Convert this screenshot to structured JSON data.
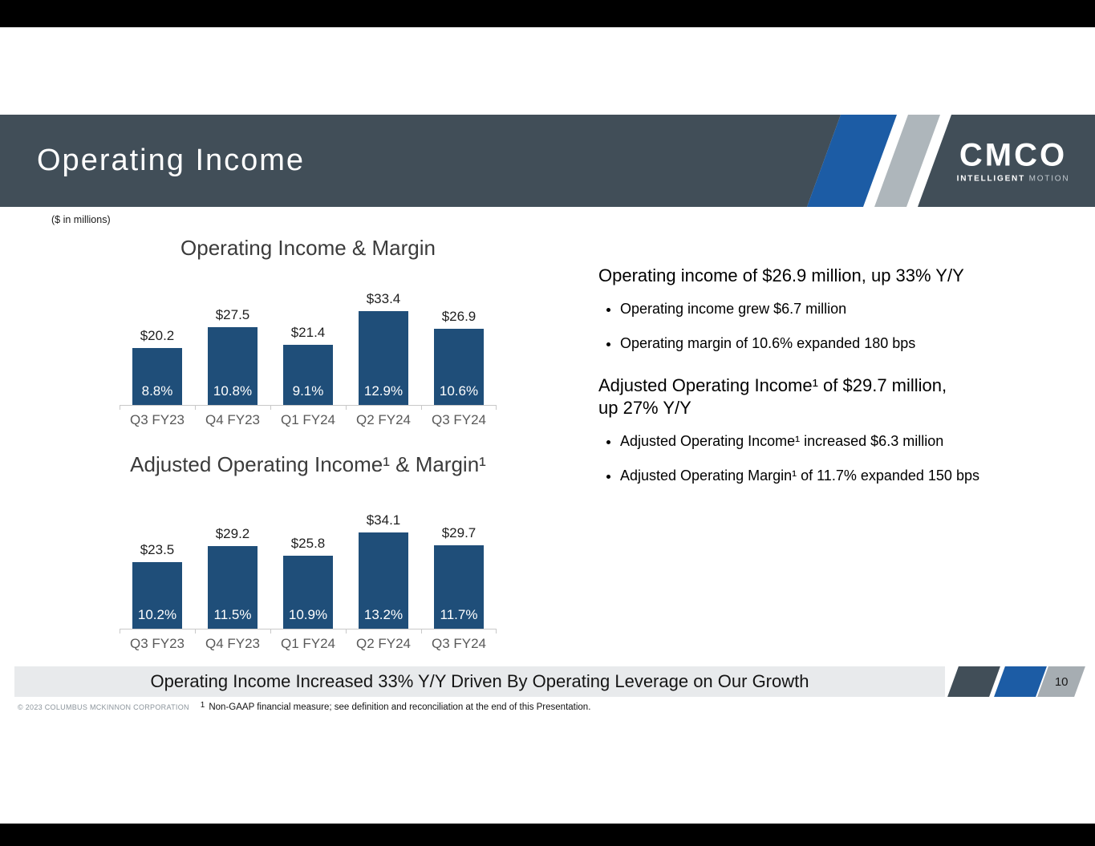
{
  "slide": {
    "title": "Operating Income",
    "units_note": "($ in millions)",
    "page_number": "10"
  },
  "logo": {
    "word": "CMCO",
    "tagline_bold": "INTELLIGENT",
    "tagline_light": "MOTION"
  },
  "chart_data": [
    {
      "type": "bar",
      "title": "Operating Income & Margin",
      "categories": [
        "Q3 FY23",
        "Q4 FY23",
        "Q1 FY24",
        "Q2 FY24",
        "Q3 FY24"
      ],
      "series": [
        {
          "name": "Operating Income ($M)",
          "values": [
            20.2,
            27.5,
            21.4,
            33.4,
            26.9
          ],
          "labels": [
            "$20.2",
            "$27.5",
            "$21.4",
            "$33.4",
            "$26.9"
          ]
        },
        {
          "name": "Operating Margin (%)",
          "values": [
            8.8,
            10.8,
            9.1,
            12.9,
            10.6
          ],
          "labels": [
            "8.8%",
            "10.8%",
            "9.1%",
            "12.9%",
            "10.6%"
          ]
        }
      ],
      "ylim": [
        0,
        35
      ],
      "bar_color": "#1F4E79",
      "legend": "none",
      "grid": false,
      "xlabel": "",
      "ylabel": ""
    },
    {
      "type": "bar",
      "title": "Adjusted Operating Income¹ & Margin¹",
      "categories": [
        "Q3 FY23",
        "Q4 FY23",
        "Q1 FY24",
        "Q2 FY24",
        "Q3 FY24"
      ],
      "series": [
        {
          "name": "Adjusted Operating Income ($M)",
          "values": [
            23.5,
            29.2,
            25.8,
            34.1,
            29.7
          ],
          "labels": [
            "$23.5",
            "$29.2",
            "$25.8",
            "$34.1",
            "$29.7"
          ]
        },
        {
          "name": "Adjusted Operating Margin (%)",
          "values": [
            10.2,
            11.5,
            10.9,
            13.2,
            11.7
          ],
          "labels": [
            "10.2%",
            "11.5%",
            "10.9%",
            "13.2%",
            "11.7%"
          ]
        }
      ],
      "ylim": [
        0,
        35
      ],
      "bar_color": "#1F4E79",
      "legend": "none",
      "grid": false,
      "xlabel": "",
      "ylabel": ""
    }
  ],
  "right_panel": {
    "sections": [
      {
        "heading": "Operating income of $26.9 million, up 33% Y/Y",
        "bullets": [
          "Operating income grew $6.7 million",
          "Operating margin of 10.6% expanded 180 bps"
        ]
      },
      {
        "heading": "Adjusted Operating Income¹ of $29.7 million,\nup 27% Y/Y",
        "bullets": [
          "Adjusted Operating Income¹ increased $6.3 million",
          "Adjusted Operating Margin¹ of 11.7% expanded 150 bps"
        ]
      }
    ]
  },
  "banner": {
    "text": "Operating Income Increased 33% Y/Y Driven By Operating Leverage on Our Growth"
  },
  "footnote": {
    "copyright": "© 2023 COLUMBUS MCKINNON CORPORATION",
    "ref": "1",
    "text": "Non-GAAP financial measure; see definition and reconciliation at the end of this Presentation."
  },
  "colors": {
    "bar": "#1F4E79",
    "header_bg": "#414E58",
    "accent_blue": "#1C5CA5",
    "accent_gray": "#AEB6BB",
    "banner_bg": "#E8EAEC",
    "page_box": "#A6ADB2"
  }
}
